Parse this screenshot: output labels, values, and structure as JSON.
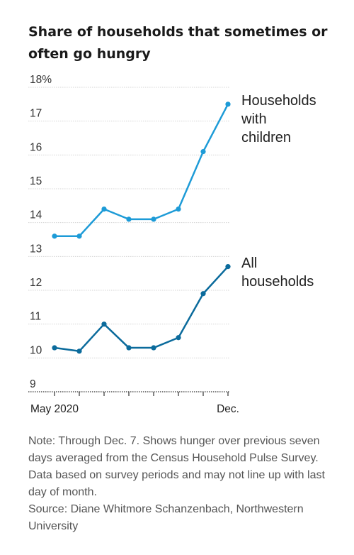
{
  "title": "Share of households that sometimes or often go hungry",
  "note": "Note: Through Dec. 7. Shows hunger over previous seven days averaged from the Census Household Pulse Survey. Data based on survey periods and may not line up with last day of month.",
  "source": "Source: Diane Whitmore Schanzenbach, Northwestern University",
  "colors": {
    "households_with_children": "#1d9bd7",
    "all_households": "#0b6b9c",
    "grid": "#d4d4d4",
    "axis": "#333333"
  },
  "chart_data": {
    "type": "line",
    "title": "Share of households that sometimes or often go hungry",
    "xlabel": "",
    "ylabel": "",
    "ylim": [
      9,
      18
    ],
    "y_ticks": [
      {
        "value": 18,
        "label": "18%"
      },
      {
        "value": 17,
        "label": "17"
      },
      {
        "value": 16,
        "label": "16"
      },
      {
        "value": 15,
        "label": "15"
      },
      {
        "value": 14,
        "label": "14"
      },
      {
        "value": 13,
        "label": "13"
      },
      {
        "value": 12,
        "label": "12"
      },
      {
        "value": 11,
        "label": "11"
      },
      {
        "value": 10,
        "label": "10"
      },
      {
        "value": 9,
        "label": "9"
      }
    ],
    "x_tick_labels": [
      "May 2020",
      "",
      "",
      "",
      "",
      "",
      "",
      "Dec."
    ],
    "grid": true,
    "series": [
      {
        "name": "Households with children",
        "label_lines": [
          "Households",
          "with",
          "children"
        ],
        "values": [
          13.6,
          13.6,
          14.4,
          14.1,
          14.1,
          14.4,
          16.1,
          17.5
        ]
      },
      {
        "name": "All households",
        "label_lines": [
          "All",
          "households"
        ],
        "values": [
          10.3,
          10.2,
          11.0,
          10.3,
          10.3,
          10.6,
          11.9,
          12.7
        ]
      }
    ]
  }
}
